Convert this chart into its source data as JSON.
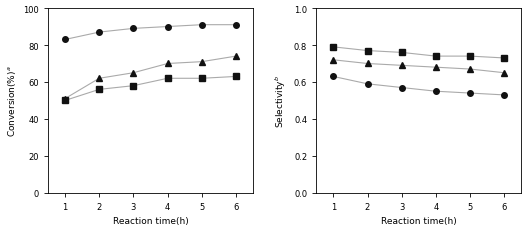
{
  "x": [
    1,
    2,
    3,
    4,
    5,
    6
  ],
  "conv_circle": [
    83,
    87,
    89,
    90,
    91,
    91
  ],
  "conv_triangle": [
    51,
    62,
    65,
    70,
    71,
    74
  ],
  "conv_square": [
    50,
    56,
    58,
    62,
    62,
    63
  ],
  "sel_square": [
    0.79,
    0.77,
    0.76,
    0.74,
    0.74,
    0.73
  ],
  "sel_triangle": [
    0.72,
    0.7,
    0.69,
    0.68,
    0.67,
    0.65
  ],
  "sel_circle": [
    0.63,
    0.59,
    0.57,
    0.55,
    0.54,
    0.53
  ],
  "conv_ylabel": "Conversion(%)$^{a}$",
  "sel_ylabel": "Selectivity$^{b}$",
  "xlabel": "Reaction time(h)",
  "conv_ylim": [
    0,
    100
  ],
  "sel_ylim": [
    0.0,
    1.0
  ],
  "conv_yticks": [
    0,
    20,
    40,
    60,
    80,
    100
  ],
  "sel_yticks": [
    0.0,
    0.2,
    0.4,
    0.6,
    0.8,
    1.0
  ],
  "xticks": [
    1,
    2,
    3,
    4,
    5,
    6
  ],
  "line_color": "#aaaaaa",
  "marker_color": "#111111",
  "marker_size": 4,
  "line_width": 0.8,
  "tick_fontsize": 6,
  "label_fontsize": 6.5
}
